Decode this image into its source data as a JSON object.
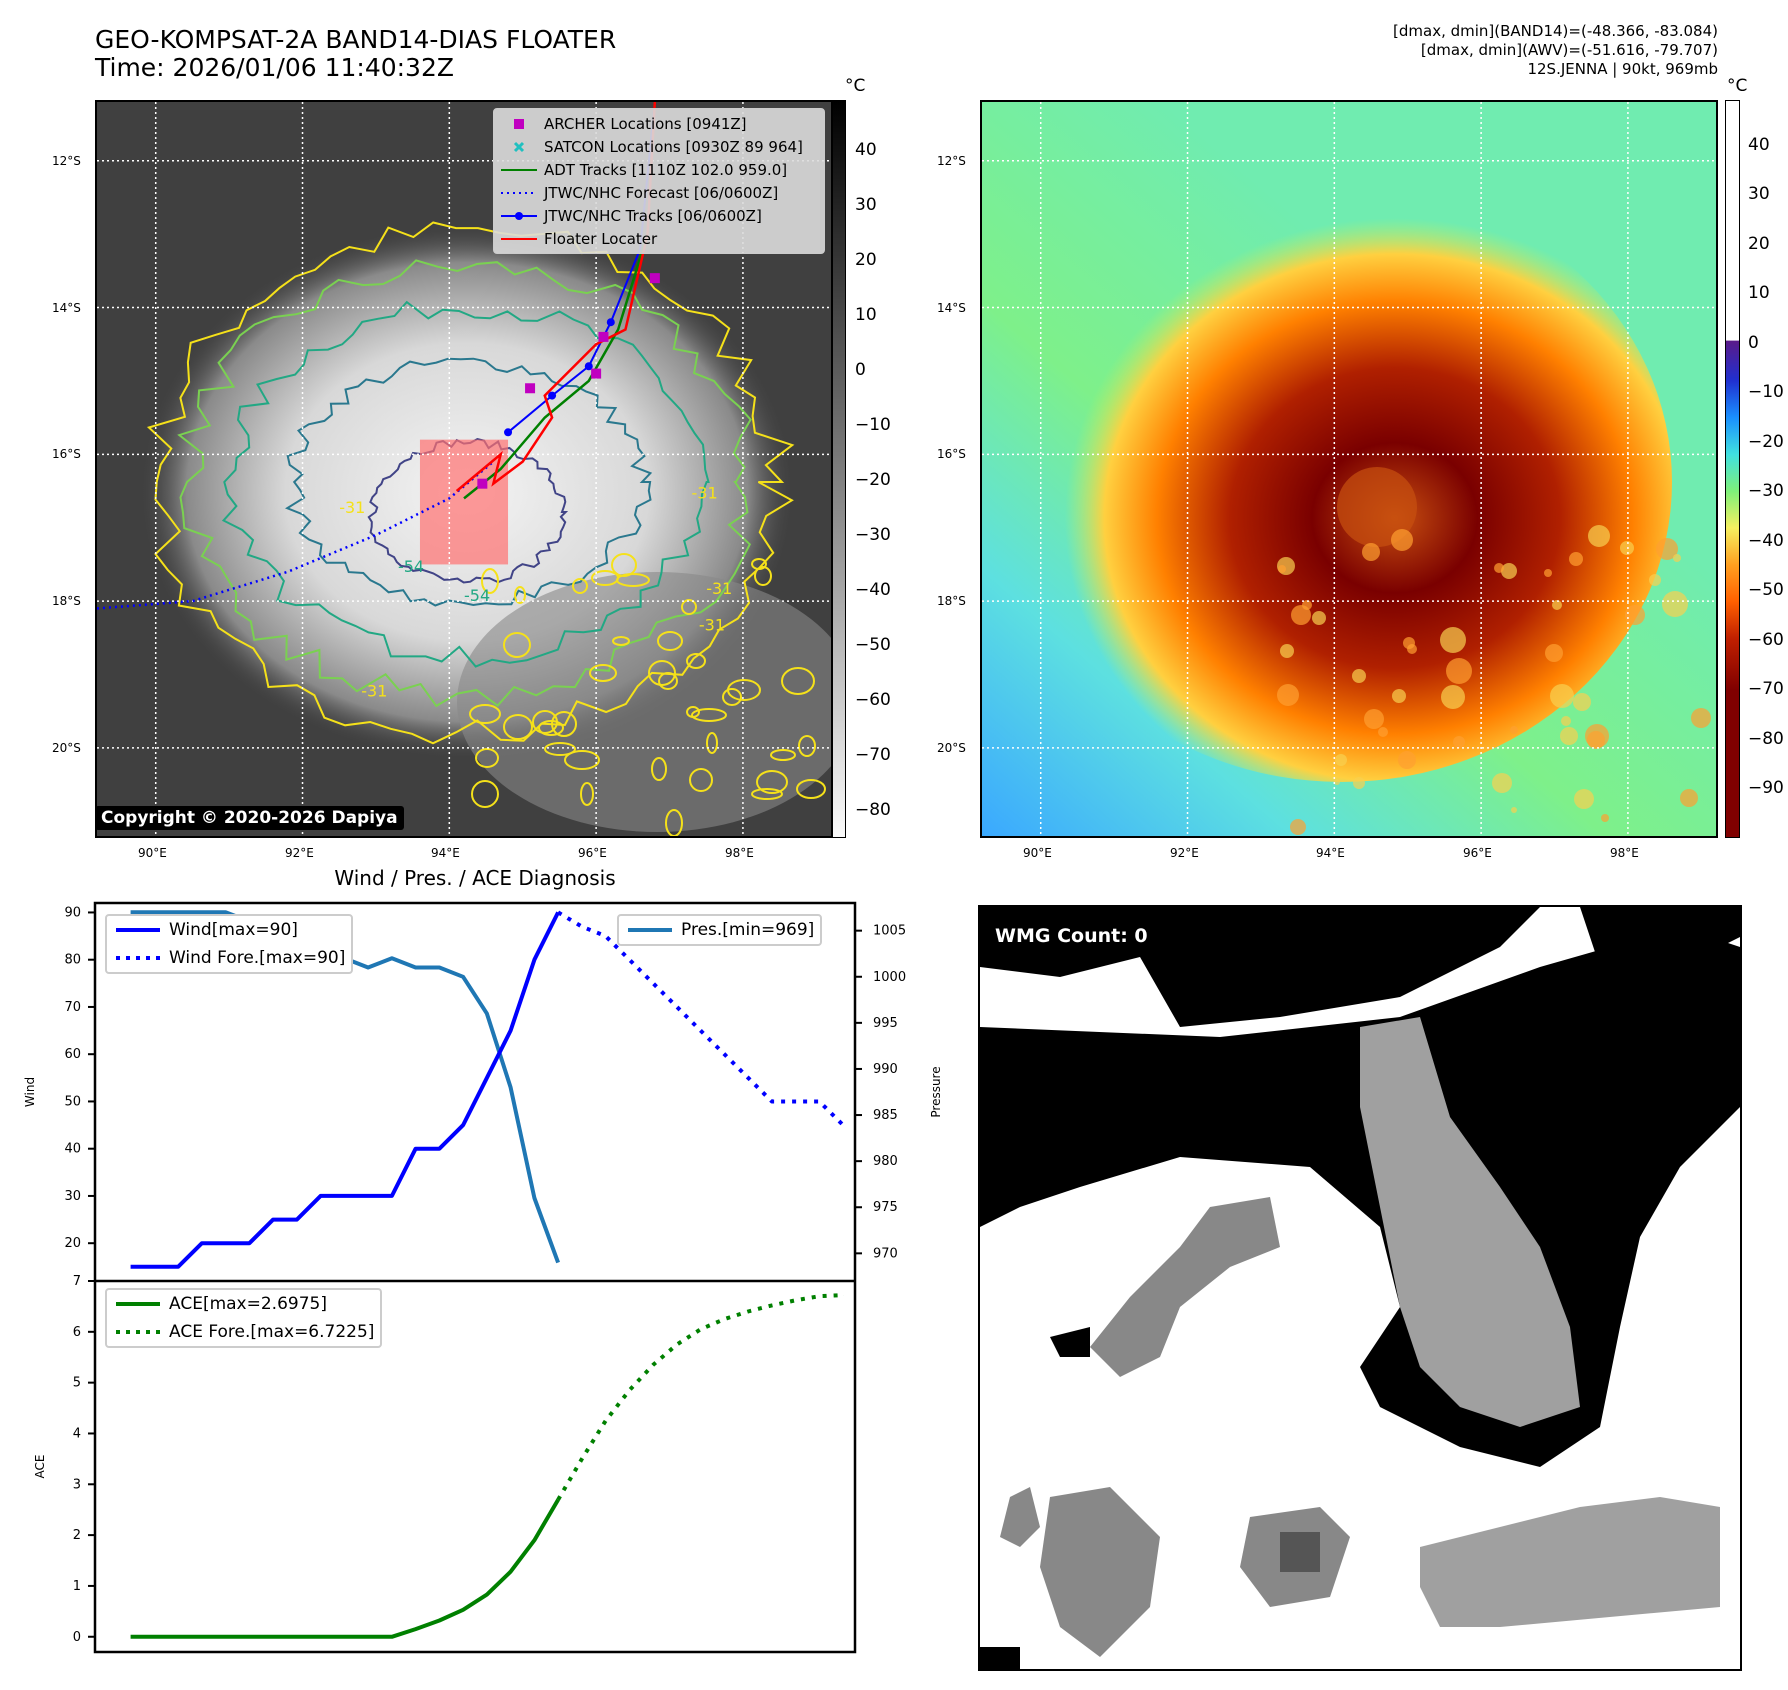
{
  "header": {
    "title_line1": "GEO-KOMPSAT-2A BAND14-DIAS FLOATER",
    "title_line2": "Time: 2026/01/06 11:40:32Z",
    "info_line1": "[dmax, dmin](BAND14)=(-48.366, -83.084)",
    "info_line2": "[dmax, dmin](AWV)=(-51.616, -79.707)",
    "info_line3": "12S.JENNA | 90kt, 969mb"
  },
  "map_axes": {
    "lat_labels": [
      "12°S",
      "14°S",
      "16°S",
      "18°S",
      "20°S"
    ],
    "lon_labels": [
      "90°E",
      "92°E",
      "94°E",
      "96°E",
      "98°E"
    ],
    "lat_values": [
      -12,
      -14,
      -16,
      -18,
      -20
    ],
    "lon_values": [
      90,
      92,
      94,
      96,
      98
    ],
    "lat_range": [
      -21.2,
      -11.2
    ],
    "lon_range": [
      89.2,
      99.2
    ]
  },
  "left_map": {
    "copyright": "Copyright © 2020-2026 Dapiya",
    "colorbar_unit": "°C",
    "colorbar_ticks": [
      "40",
      "30",
      "20",
      "10",
      "0",
      "−10",
      "−20",
      "−30",
      "−40",
      "−50",
      "−60",
      "−70",
      "−80"
    ],
    "colorbar_values": [
      40,
      30,
      20,
      10,
      0,
      -10,
      -20,
      -30,
      -40,
      -50,
      -60,
      -70,
      -80
    ],
    "colorbar_range": [
      -85,
      49
    ],
    "contour_labels": [
      "-31",
      "-31",
      "-31",
      "-54",
      "-54",
      "-31",
      "-31"
    ],
    "legend": [
      {
        "label": "ARCHER Locations [0941Z]",
        "marker": "square",
        "color": "#c000c0"
      },
      {
        "label": "SATCON Locations [0930Z 89 964]",
        "marker": "x",
        "color": "#20c0c0"
      },
      {
        "label": "ADT Tracks [1110Z 102.0 959.0]",
        "marker": "line",
        "color": "#008000"
      },
      {
        "label": "JTWC/NHC Forecast [06/0600Z]",
        "marker": "dotted",
        "color": "#0000ff"
      },
      {
        "label": "JTWC/NHC Tracks [06/0600Z]",
        "marker": "line-dot",
        "color": "#0000ff"
      },
      {
        "label": "Floater Locater",
        "marker": "line",
        "color": "#ff0000"
      }
    ]
  },
  "right_map": {
    "colorbar_unit": "°C",
    "colorbar_ticks": [
      "40",
      "30",
      "20",
      "10",
      "0",
      "−10",
      "−20",
      "−30",
      "−40",
      "−50",
      "−60",
      "−70",
      "−80",
      "−90"
    ],
    "colorbar_values": [
      40,
      30,
      20,
      10,
      0,
      -10,
      -20,
      -30,
      -40,
      -50,
      -60,
      -70,
      -80,
      -90
    ],
    "colorbar_range": [
      -100,
      49
    ]
  },
  "wmg": {
    "label": "WMG Count: 0"
  },
  "chart_data": [
    {
      "type": "line",
      "title": "Wind / Pres. / ACE Diagnosis",
      "ylabel": "Wind",
      "ylabel_right": "Pressure",
      "ylim": [
        12,
        92
      ],
      "ylim_right": [
        967,
        1008
      ],
      "yticks": [
        20,
        30,
        40,
        50,
        60,
        70,
        80,
        90
      ],
      "yticks_right": [
        970,
        975,
        980,
        985,
        990,
        995,
        1000,
        1005
      ],
      "x": [
        0,
        1,
        2,
        3,
        4,
        5,
        6,
        7,
        8,
        9,
        10,
        11,
        12,
        13,
        14,
        15,
        16,
        17,
        18,
        19,
        20,
        21,
        22,
        23,
        24,
        25,
        26,
        27,
        28,
        29
      ],
      "xlim": [
        -1.5,
        30.5
      ],
      "series": [
        {
          "name": "Wind[max=90]",
          "axis": "left",
          "style": "solid",
          "color": "#0000ff",
          "x": [
            0,
            1,
            2,
            3,
            4,
            5,
            6,
            7,
            8,
            9,
            10,
            11,
            12,
            13,
            14,
            15,
            16,
            17,
            18
          ],
          "values": [
            15,
            15,
            15,
            20,
            20,
            20,
            25,
            25,
            30,
            30,
            30,
            30,
            40,
            40,
            45,
            55,
            65,
            80,
            90
          ]
        },
        {
          "name": "Wind Fore.[max=90]",
          "axis": "left",
          "style": "dotted",
          "color": "#0000ff",
          "x": [
            18,
            19,
            20,
            21,
            22,
            23,
            24,
            25,
            26,
            27,
            28,
            29,
            30
          ],
          "values": [
            90,
            87,
            85,
            80,
            75,
            70,
            65,
            60,
            55,
            50,
            50,
            50,
            45
          ]
        },
        {
          "name": "Pres.[min=969]",
          "axis": "right",
          "style": "solid",
          "color": "#1f77b4",
          "x": [
            0,
            1,
            2,
            3,
            4,
            5,
            6,
            7,
            8,
            9,
            10,
            11,
            12,
            13,
            14,
            15,
            16,
            17,
            18
          ],
          "values": [
            1007,
            1007,
            1007,
            1007,
            1007,
            1006,
            1006,
            1004,
            1002,
            1002,
            1001,
            1002,
            1001,
            1001,
            1000,
            996,
            988,
            976,
            969
          ]
        }
      ],
      "legend_left": "upper-left",
      "legend_right": "upper-right"
    },
    {
      "type": "line",
      "ylabel": "ACE",
      "ylim": [
        -0.3,
        7
      ],
      "yticks": [
        0,
        1,
        2,
        3,
        4,
        5,
        6,
        7
      ],
      "xlim": [
        -1.5,
        30.5
      ],
      "series": [
        {
          "name": "ACE[max=2.6975]",
          "style": "solid",
          "color": "#008000",
          "x": [
            0,
            1,
            2,
            3,
            4,
            5,
            6,
            7,
            8,
            9,
            10,
            11,
            12,
            13,
            14,
            15,
            16,
            17,
            18
          ],
          "values": [
            0,
            0,
            0,
            0,
            0,
            0,
            0,
            0,
            0,
            0,
            0,
            0,
            0.15,
            0.32,
            0.53,
            0.83,
            1.28,
            1.9,
            2.6975
          ]
        },
        {
          "name": "ACE Fore.[max=6.7225]",
          "style": "dotted",
          "color": "#008000",
          "x": [
            18,
            19,
            20,
            21,
            22,
            23,
            24,
            25,
            26,
            27,
            28,
            29,
            30
          ],
          "values": [
            2.6975,
            3.5,
            4.25,
            4.85,
            5.35,
            5.75,
            6.05,
            6.25,
            6.4,
            6.52,
            6.62,
            6.7,
            6.7225
          ]
        }
      ],
      "legend": "upper-left"
    }
  ]
}
